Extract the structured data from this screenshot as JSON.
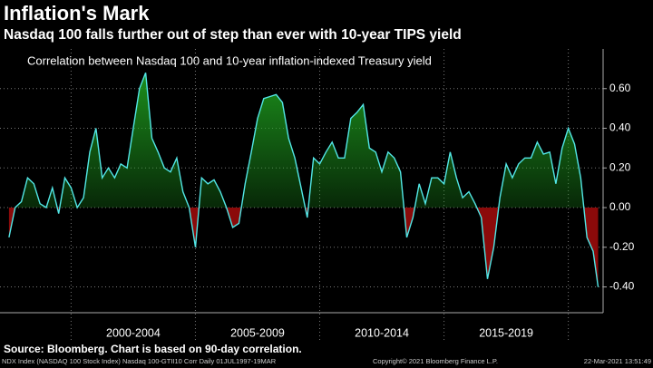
{
  "chart_data": {
    "type": "area",
    "title": "Inflation's Mark",
    "subtitle": "Nasdaq 100 falls further out of step than ever with 10-year TIPS yield",
    "chart_label": "Correlation between Nasdaq 100 and 10-year inflation-indexed Treasury yield",
    "source": "Source: Bloomberg. Chart is based on 90-day correlation.",
    "footer_left": "NDX Index (NASDAQ 100 Stock Index) Nasdaq 100-GTII10 Corr  Daily 01JUL1997-19MAR",
    "footer_center": "Copyright© 2021 Bloomberg Finance L.P.",
    "footer_right": "22-Mar-2021 13:51:49",
    "x": [
      1997.5,
      1997.75,
      1998,
      1998.25,
      1998.5,
      1998.75,
      1999,
      1999.25,
      1999.5,
      1999.75,
      2000,
      2000.25,
      2000.5,
      2000.75,
      2001,
      2001.25,
      2001.5,
      2001.75,
      2002,
      2002.25,
      2002.5,
      2002.75,
      2003,
      2003.25,
      2003.5,
      2003.75,
      2004,
      2004.25,
      2004.5,
      2004.75,
      2005,
      2005.25,
      2005.5,
      2005.75,
      2006,
      2006.25,
      2006.5,
      2006.75,
      2007,
      2007.25,
      2007.5,
      2007.75,
      2008,
      2008.25,
      2008.5,
      2008.75,
      2009,
      2009.25,
      2009.5,
      2009.75,
      2010,
      2010.25,
      2010.5,
      2010.75,
      2011,
      2011.25,
      2011.5,
      2011.75,
      2012,
      2012.25,
      2012.5,
      2012.75,
      2013,
      2013.25,
      2013.5,
      2013.75,
      2014,
      2014.25,
      2014.5,
      2014.75,
      2015,
      2015.25,
      2015.5,
      2015.75,
      2016,
      2016.25,
      2016.5,
      2016.75,
      2017,
      2017.25,
      2017.5,
      2017.75,
      2018,
      2018.25,
      2018.5,
      2018.75,
      2019,
      2019.25,
      2019.5,
      2019.75,
      2020,
      2020.25,
      2020.5,
      2020.75,
      2021,
      2021.2
    ],
    "series": [
      {
        "name": "Correlation",
        "color": "#52e6e6",
        "fill_positive": "#1fa01f",
        "fill_negative": "#8b0a0a",
        "values": [
          -0.15,
          0.0,
          0.03,
          0.15,
          0.12,
          0.02,
          0.0,
          0.1,
          -0.03,
          0.15,
          0.1,
          0.0,
          0.05,
          0.28,
          0.4,
          0.15,
          0.2,
          0.15,
          0.22,
          0.2,
          0.4,
          0.6,
          0.68,
          0.35,
          0.28,
          0.2,
          0.18,
          0.25,
          0.08,
          0.0,
          -0.2,
          0.15,
          0.12,
          0.14,
          0.08,
          0.0,
          -0.1,
          -0.08,
          0.12,
          0.28,
          0.45,
          0.55,
          0.56,
          0.57,
          0.53,
          0.35,
          0.25,
          0.1,
          -0.05,
          0.25,
          0.22,
          0.28,
          0.33,
          0.25,
          0.25,
          0.45,
          0.48,
          0.52,
          0.3,
          0.28,
          0.18,
          0.28,
          0.25,
          0.18,
          -0.15,
          -0.05,
          0.12,
          0.02,
          0.15,
          0.15,
          0.12,
          0.28,
          0.15,
          0.05,
          0.08,
          0.02,
          -0.05,
          -0.36,
          -0.2,
          0.05,
          0.22,
          0.15,
          0.22,
          0.25,
          0.25,
          0.33,
          0.27,
          0.28,
          0.12,
          0.3,
          0.4,
          0.32,
          0.15,
          -0.15,
          -0.22,
          -0.4
        ]
      }
    ],
    "xlim": [
      1997.14,
      2021.4
    ],
    "xticks": [
      2000,
      2005,
      2010,
      2015,
      2020
    ],
    "x_band_labels": [
      "2000-2004",
      "2005-2009",
      "2010-2014",
      "2015-2019"
    ],
    "ylim": [
      -0.53,
      0.8
    ],
    "yticks": [
      {
        "value": 0.6,
        "label": "0.60"
      },
      {
        "value": 0.4,
        "label": "0.40"
      },
      {
        "value": 0.2,
        "label": "0.20"
      },
      {
        "value": 0,
        "label": "0.00"
      },
      {
        "value": -0.2,
        "label": "-0.20"
      },
      {
        "value": -0.4,
        "label": "-0.40"
      }
    ],
    "grid": true
  }
}
